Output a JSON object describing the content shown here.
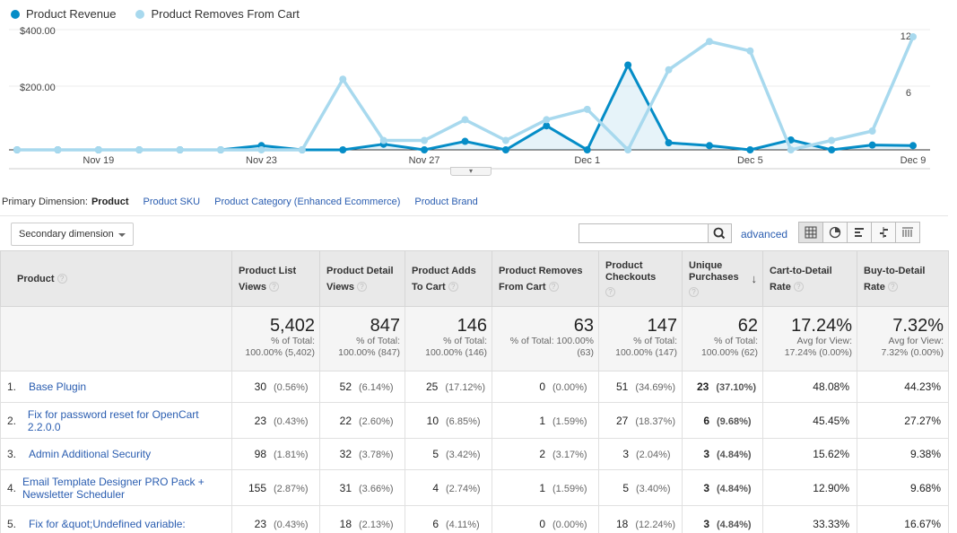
{
  "legend": [
    {
      "label": "Product Revenue",
      "color": "#058dc7"
    },
    {
      "label": "Product Removes From Cart",
      "color": "#a8d9ee"
    }
  ],
  "chart_data": {
    "type": "line",
    "x": [
      "Nov 17",
      "Nov 18",
      "Nov 19",
      "Nov 20",
      "Nov 21",
      "Nov 22",
      "Nov 23",
      "Nov 24",
      "Nov 25",
      "Nov 26",
      "Nov 27",
      "Nov 28",
      "Nov 29",
      "Nov 30",
      "Dec 1",
      "Dec 2",
      "Dec 3",
      "Dec 4",
      "Dec 5",
      "Dec 6",
      "Dec 7",
      "Dec 8",
      "Dec 9"
    ],
    "x_tick_labels": [
      "Nov 19",
      "Nov 23",
      "Nov 27",
      "Dec 1",
      "Dec 5",
      "Dec 9"
    ],
    "left_axis": {
      "ticks": [
        "$400.00",
        "$200.00"
      ],
      "ylim": [
        0,
        400
      ]
    },
    "right_axis": {
      "ticks": [
        "12",
        "6"
      ],
      "ylim": [
        0,
        12
      ]
    },
    "series": [
      {
        "name": "Product Revenue",
        "axis": "left",
        "color": "#058dc7",
        "values": [
          0,
          0,
          0,
          0,
          0,
          0,
          15,
          0,
          0,
          20,
          0,
          30,
          0,
          85,
          0,
          300,
          25,
          15,
          0,
          35,
          0,
          17,
          15
        ]
      },
      {
        "name": "Product Removes From Cart",
        "axis": "right",
        "color": "#a8d9ee",
        "values": [
          0,
          0,
          0,
          0,
          0,
          0,
          0,
          0,
          7.5,
          1,
          1,
          3.2,
          1,
          3.2,
          4.3,
          0,
          8.5,
          11.5,
          10.5,
          0,
          1,
          2,
          12
        ]
      }
    ],
    "grid": true,
    "legend_position": "top-left"
  },
  "primary_dimension": {
    "label": "Primary Dimension:",
    "active": "Product",
    "options": [
      "Product SKU",
      "Product Category (Enhanced Ecommerce)",
      "Product Brand"
    ]
  },
  "toolbar": {
    "secondary_dimension": "Secondary dimension",
    "search_placeholder": "",
    "advanced": "advanced"
  },
  "table": {
    "headers": [
      "Product",
      "Product List Views",
      "Product Detail Views",
      "Product Adds To Cart",
      "Product Removes From Cart",
      "Product Checkouts",
      "Unique Purchases",
      "Cart-to-Detail Rate",
      "Buy-to-Detail Rate"
    ],
    "totals": [
      {
        "big": "5,402",
        "small1": "% of Total:",
        "small2": "100.00% (5,402)"
      },
      {
        "big": "847",
        "small1": "% of Total:",
        "small2": "100.00% (847)"
      },
      {
        "big": "146",
        "small1": "% of Total:",
        "small2": "100.00% (146)"
      },
      {
        "big": "63",
        "small1": "% of Total: 100.00%",
        "small2": "(63)"
      },
      {
        "big": "147",
        "small1": "% of Total:",
        "small2": "100.00% (147)"
      },
      {
        "big": "62",
        "small1": "% of Total:",
        "small2": "100.00% (62)"
      },
      {
        "big": "17.24%",
        "small1": "Avg for View:",
        "small2": "17.24% (0.00%)"
      },
      {
        "big": "7.32%",
        "small1": "Avg for View:",
        "small2": "7.32% (0.00%)"
      }
    ],
    "rows": [
      {
        "n": "1.",
        "name": "Base Plugin",
        "c": [
          [
            "30",
            "(0.56%)"
          ],
          [
            "52",
            "(6.14%)"
          ],
          [
            "25",
            "(17.12%)"
          ],
          [
            "0",
            "(0.00%)"
          ],
          [
            "51",
            "(34.69%)"
          ],
          [
            "23",
            "(37.10%)"
          ]
        ],
        "r": [
          "48.08%",
          "44.23%"
        ]
      },
      {
        "n": "2.",
        "name": "Fix for password reset for OpenCart 2.2.0.0",
        "c": [
          [
            "23",
            "(0.43%)"
          ],
          [
            "22",
            "(2.60%)"
          ],
          [
            "10",
            "(6.85%)"
          ],
          [
            "1",
            "(1.59%)"
          ],
          [
            "27",
            "(18.37%)"
          ],
          [
            "6",
            "(9.68%)"
          ]
        ],
        "r": [
          "45.45%",
          "27.27%"
        ]
      },
      {
        "n": "3.",
        "name": "Admin Additional Security",
        "c": [
          [
            "98",
            "(1.81%)"
          ],
          [
            "32",
            "(3.78%)"
          ],
          [
            "5",
            "(3.42%)"
          ],
          [
            "2",
            "(3.17%)"
          ],
          [
            "3",
            "(2.04%)"
          ],
          [
            "3",
            "(4.84%)"
          ]
        ],
        "r": [
          "15.62%",
          "9.38%"
        ]
      },
      {
        "n": "4.",
        "name": "Email Template Designer PRO Pack + Newsletter Scheduler",
        "c": [
          [
            "155",
            "(2.87%)"
          ],
          [
            "31",
            "(3.66%)"
          ],
          [
            "4",
            "(2.74%)"
          ],
          [
            "1",
            "(1.59%)"
          ],
          [
            "5",
            "(3.40%)"
          ],
          [
            "3",
            "(4.84%)"
          ]
        ],
        "r": [
          "12.90%",
          "9.68%"
        ]
      },
      {
        "n": "5.",
        "name": "Fix for &quot;Undefined variable:",
        "c": [
          [
            "23",
            "(0.43%)"
          ],
          [
            "18",
            "(2.13%)"
          ],
          [
            "6",
            "(4.11%)"
          ],
          [
            "0",
            "(0.00%)"
          ],
          [
            "18",
            "(12.24%)"
          ],
          [
            "3",
            "(4.84%)"
          ]
        ],
        "r": [
          "33.33%",
          "16.67%"
        ]
      }
    ]
  }
}
